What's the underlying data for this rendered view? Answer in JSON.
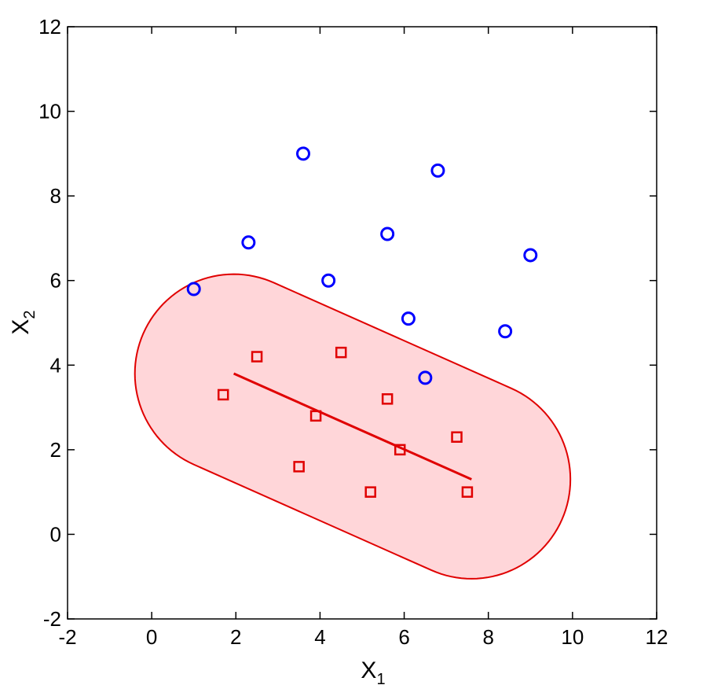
{
  "chart_data": {
    "type": "scatter",
    "xlabel": "X",
    "xlabel_sub": "1",
    "ylabel": "X",
    "ylabel_sub": "2",
    "xlim": [
      -2,
      12
    ],
    "ylim": [
      -2,
      12
    ],
    "x_ticks": [
      "-2",
      "0",
      "2",
      "4",
      "6",
      "8",
      "10",
      "12"
    ],
    "y_ticks": [
      "-2",
      "0",
      "2",
      "4",
      "6",
      "8",
      "10",
      "12"
    ],
    "grid": false,
    "series": [
      {
        "marker": "circle",
        "color": "#0000ff",
        "points": [
          [
            1.0,
            5.8
          ],
          [
            2.3,
            6.9
          ],
          [
            3.6,
            9.0
          ],
          [
            4.2,
            6.0
          ],
          [
            5.6,
            7.1
          ],
          [
            6.1,
            5.1
          ],
          [
            6.5,
            3.7
          ],
          [
            6.8,
            8.6
          ],
          [
            8.4,
            4.8
          ],
          [
            9.0,
            6.6
          ]
        ]
      },
      {
        "marker": "square",
        "color": "#e00000",
        "points": [
          [
            1.7,
            3.3
          ],
          [
            2.5,
            4.2
          ],
          [
            3.5,
            1.6
          ],
          [
            3.9,
            2.8
          ],
          [
            4.5,
            4.3
          ],
          [
            5.2,
            1.0
          ],
          [
            5.6,
            3.2
          ],
          [
            5.9,
            2.0
          ],
          [
            7.25,
            2.3
          ],
          [
            7.5,
            1.0
          ]
        ]
      }
    ],
    "segment": {
      "from": [
        1.95,
        3.8
      ],
      "to": [
        7.6,
        1.3
      ],
      "color": "#e00000"
    },
    "capsule": {
      "from": [
        1.95,
        3.8
      ],
      "to": [
        7.6,
        1.3
      ],
      "radius": 2.35,
      "fill": "#ffd6d9",
      "stroke": "#e00000"
    }
  }
}
